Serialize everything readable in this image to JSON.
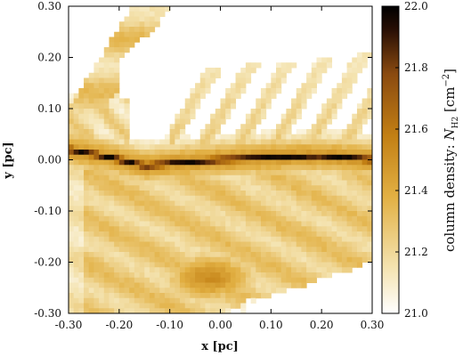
{
  "chart_data": {
    "type": "heatmap",
    "xlabel": "x [pc]",
    "ylabel": "y [pc]",
    "xlim": [
      -0.3,
      0.3
    ],
    "ylim": [
      -0.3,
      0.3
    ],
    "x_ticks": [
      "-0.30",
      "-0.20",
      "-0.10",
      "0.00",
      "0.10",
      "0.20",
      "0.30"
    ],
    "y_ticks": [
      "0.30",
      "0.20",
      "0.10",
      "0.00",
      "-0.10",
      "-0.20",
      "-0.30"
    ],
    "colorbar": {
      "label_prefix": "column density: ",
      "label_symbol": "N",
      "label_subscript": "H2",
      "label_unit_open": " [cm",
      "label_unit_exp": "−2",
      "label_unit_close": "]",
      "range": [
        21.0,
        22.0
      ],
      "ticks": [
        "22.0",
        "21.8",
        "21.6",
        "21.4",
        "21.2",
        "21.0"
      ],
      "colormap": [
        "#ffffff",
        "#f4e3b0",
        "#e2b043",
        "#c27f14",
        "#8a4a10",
        "#2a1005",
        "#000000"
      ]
    },
    "features": {
      "filament_ridge": [
        [
          -0.3,
          0.02
        ],
        [
          -0.22,
          0.005
        ],
        [
          -0.15,
          -0.012
        ],
        [
          -0.08,
          -0.006
        ],
        [
          0.0,
          0.0
        ],
        [
          0.1,
          0.005
        ],
        [
          0.2,
          0.008
        ],
        [
          0.3,
          0.0
        ]
      ],
      "dense_clump": {
        "x": -0.02,
        "y": -0.23,
        "peak": 21.5
      }
    }
  }
}
